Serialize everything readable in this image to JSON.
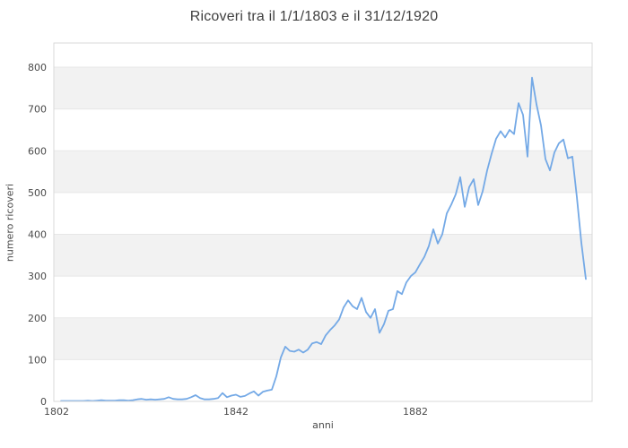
{
  "header": {
    "title": "Ricoveri tra il 1/1/1803 e il 31/12/1920"
  },
  "chart_data": {
    "type": "line",
    "title": "Ricoveri tra il 1/1/1803 e il 31/12/1920",
    "xlabel": "anni",
    "ylabel": "numero ricoveri",
    "legend": "none",
    "grid": "horizontal gridlines every 100 with alternating gray bands",
    "x_tick_labels": [
      1802,
      1842,
      1882
    ],
    "y_tick_labels": [
      0,
      100,
      200,
      300,
      400,
      500,
      600,
      700,
      800
    ],
    "xlim": [
      1801.4,
      1921.4
    ],
    "ylim": [
      0,
      858
    ],
    "band_pairs": [
      [
        100,
        200
      ],
      [
        300,
        400
      ],
      [
        500,
        600
      ],
      [
        700,
        800
      ]
    ],
    "line_color": "#74a9e6",
    "band_color": "#f2f2f2",
    "grid_color": "#e7e7e7",
    "border_color": "#d9d9d9",
    "tick_color": "#4a4a4a",
    "title_color": "#3f3f3f",
    "x": [
      1803,
      1804,
      1805,
      1806,
      1807,
      1808,
      1809,
      1810,
      1811,
      1812,
      1813,
      1814,
      1815,
      1816,
      1817,
      1818,
      1819,
      1820,
      1821,
      1822,
      1823,
      1824,
      1825,
      1826,
      1827,
      1828,
      1829,
      1830,
      1831,
      1832,
      1833,
      1834,
      1835,
      1836,
      1837,
      1838,
      1839,
      1840,
      1841,
      1842,
      1843,
      1844,
      1845,
      1846,
      1847,
      1848,
      1849,
      1850,
      1851,
      1852,
      1853,
      1854,
      1855,
      1856,
      1857,
      1858,
      1859,
      1860,
      1861,
      1862,
      1863,
      1864,
      1865,
      1866,
      1867,
      1868,
      1869,
      1870,
      1871,
      1872,
      1873,
      1874,
      1875,
      1876,
      1877,
      1878,
      1879,
      1880,
      1881,
      1882,
      1883,
      1884,
      1885,
      1886,
      1887,
      1888,
      1889,
      1890,
      1891,
      1892,
      1893,
      1894,
      1895,
      1896,
      1897,
      1898,
      1899,
      1900,
      1901,
      1902,
      1903,
      1904,
      1905,
      1906,
      1907,
      1908,
      1909,
      1910,
      1911,
      1912,
      1913,
      1914,
      1915,
      1916,
      1917,
      1918,
      1919,
      1920
    ],
    "values": [
      1,
      1,
      1,
      1,
      1,
      1,
      2,
      1,
      2,
      3,
      2,
      2,
      2,
      3,
      3,
      2,
      3,
      5,
      6,
      4,
      5,
      4,
      5,
      6,
      10,
      6,
      5,
      5,
      6,
      10,
      15,
      8,
      5,
      5,
      6,
      8,
      20,
      10,
      14,
      16,
      11,
      13,
      19,
      24,
      14,
      23,
      26,
      28,
      60,
      105,
      131,
      121,
      119,
      124,
      117,
      124,
      139,
      142,
      137,
      158,
      171,
      182,
      196,
      225,
      242,
      228,
      221,
      248,
      214,
      200,
      221,
      164,
      185,
      217,
      221,
      264,
      257,
      285,
      300,
      309,
      328,
      346,
      372,
      412,
      378,
      400,
      450,
      471,
      496,
      537,
      466,
      513,
      532,
      470,
      503,
      553,
      593,
      629,
      647,
      632,
      650,
      640,
      714,
      686,
      586,
      775,
      711,
      661,
      580,
      553,
      596,
      618,
      627,
      582,
      586,
      489,
      380,
      293
    ]
  }
}
